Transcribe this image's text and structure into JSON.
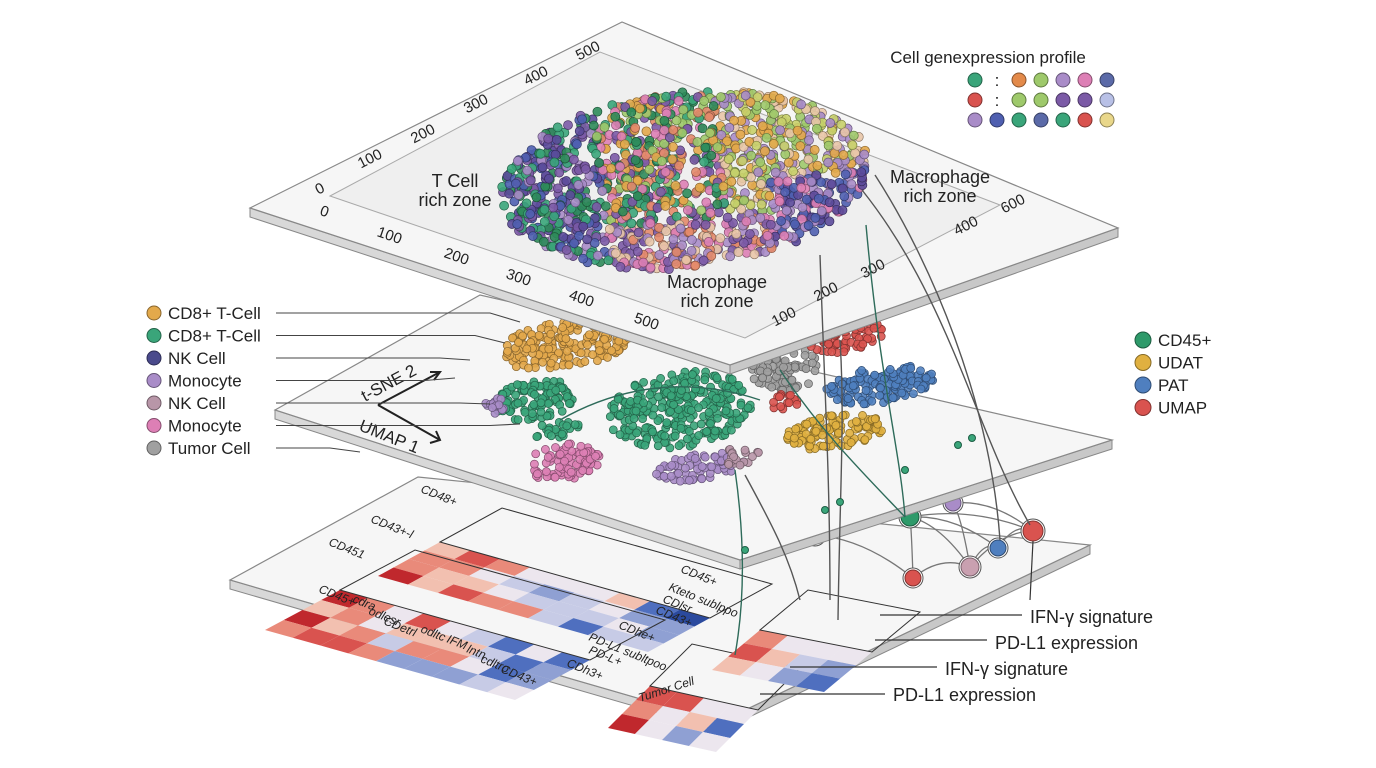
{
  "top_layer": {
    "profile_title": "Cell genexpression profile",
    "separator": ":",
    "left_ticks": [
      "0",
      "100",
      "200",
      "300",
      "400",
      "500"
    ],
    "front_ticks": [
      "0",
      "100",
      "200",
      "300",
      "400",
      "500"
    ],
    "right_ticks": [
      "600",
      "400",
      "300",
      "200",
      "100"
    ],
    "zones": [
      {
        "lines": [
          "T Cell",
          "rich zone"
        ]
      },
      {
        "lines": [
          "Macrophage",
          "rich zone"
        ]
      },
      {
        "lines": [
          "Macrophage",
          "rich zone"
        ]
      }
    ]
  },
  "middle_layer": {
    "cell_types": [
      {
        "label": "CD8+ T-Cell",
        "color": "#e3a94b"
      },
      {
        "label": "CD8+ T-Cell",
        "color": "#3aa57a"
      },
      {
        "label": "NK Cell",
        "color": "#4a4a8c"
      },
      {
        "label": "Monocyte",
        "color": "#a98cc8"
      },
      {
        "label": "NK Cell",
        "color": "#b896a8"
      },
      {
        "label": "Monocyte",
        "color": "#dd7fb5"
      },
      {
        "label": "Tumor Cell",
        "color": "#a0a0a0"
      }
    ],
    "axes": [
      "t-SNE 2",
      "UMAP 1"
    ],
    "markers": [
      {
        "label": "CD45+",
        "color": "#2e9a6a"
      },
      {
        "label": "UDAT",
        "color": "#e0b040"
      },
      {
        "label": "PAT",
        "color": "#4f7fbf"
      },
      {
        "label": "UMAP",
        "color": "#d9534f"
      }
    ]
  },
  "bottom_layer": {
    "left_labels": [
      "CD48+",
      "CD43+-l",
      "CD451",
      "CD45+",
      "cdra",
      "odlesr",
      "CDetrl",
      "odltc",
      "IFM",
      "lntn",
      "cdltro",
      "CD43+"
    ],
    "right_labels": [
      "CD45+",
      "Kteto sublppo",
      "CDlsr",
      "CD43+",
      "CDhe+",
      "PD-L1 subltpoo",
      "PD-L+",
      "CDh3+"
    ],
    "annotations": [
      "IFN-γ signature",
      "PD-L1 expression",
      "IFN-γ signature",
      "PD-L1 expression"
    ],
    "tumor_label": "Tumor Cell"
  }
}
